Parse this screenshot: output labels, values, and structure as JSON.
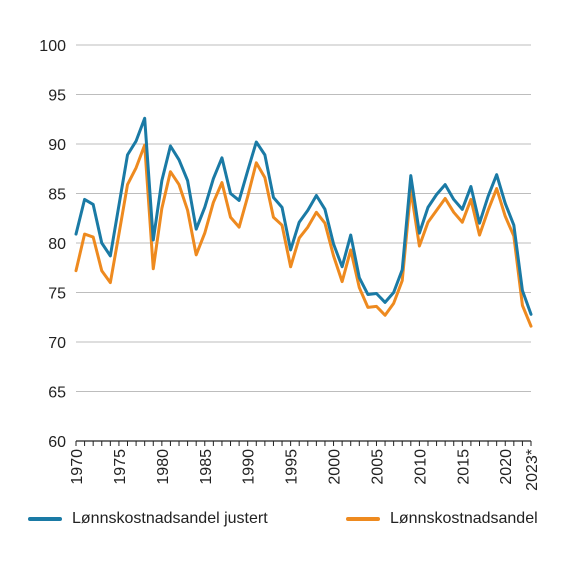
{
  "chart_data": {
    "type": "line",
    "x": [
      "1970",
      "1971",
      "1972",
      "1973",
      "1974",
      "1975",
      "1976",
      "1977",
      "1978",
      "1979",
      "1980",
      "1981",
      "1982",
      "1983",
      "1984",
      "1985",
      "1986",
      "1987",
      "1988",
      "1989",
      "1990",
      "1991",
      "1992",
      "1993",
      "1994",
      "1995",
      "1996",
      "1997",
      "1998",
      "1999",
      "2000",
      "2001",
      "2002",
      "2003",
      "2004",
      "2005",
      "2006",
      "2007",
      "2008",
      "2009",
      "2010",
      "2011",
      "2012",
      "2013",
      "2014",
      "2015",
      "2016",
      "2017",
      "2018",
      "2019",
      "2020",
      "2021",
      "2022",
      "2023*"
    ],
    "xticks": [
      "1970",
      "1975",
      "1980",
      "1985",
      "1990",
      "1995",
      "2000",
      "2005",
      "2010",
      "2015",
      "2020",
      "2023*"
    ],
    "yticks": [
      "60",
      "65",
      "70",
      "75",
      "80",
      "85",
      "90",
      "95",
      "100"
    ],
    "ylim": [
      60,
      100
    ],
    "grid": true,
    "legend_position": "bottom",
    "series": [
      {
        "name": "Lønnskostnadsandel justert",
        "color": "#1a7aa5",
        "values": [
          80.9,
          84.4,
          83.9,
          80.0,
          78.7,
          83.8,
          88.9,
          90.3,
          92.6,
          80.3,
          86.3,
          89.8,
          88.4,
          86.3,
          81.4,
          83.6,
          86.5,
          88.6,
          85.0,
          84.3,
          87.3,
          90.2,
          88.9,
          84.6,
          83.6,
          79.3,
          82.1,
          83.3,
          84.8,
          83.4,
          79.9,
          77.6,
          80.8,
          76.5,
          74.8,
          74.9,
          74.0,
          75.0,
          77.3,
          86.8,
          81.0,
          83.6,
          84.9,
          85.9,
          84.4,
          83.4,
          85.7,
          82.0,
          84.7,
          86.9,
          84.0,
          81.8,
          75.2,
          72.8
        ]
      },
      {
        "name": "Lønnskostnadsandel",
        "color": "#ee8a1f",
        "values": [
          77.2,
          80.9,
          80.6,
          77.2,
          76.0,
          80.9,
          85.9,
          87.6,
          89.9,
          77.4,
          83.5,
          87.2,
          85.9,
          83.3,
          78.8,
          81.0,
          84.1,
          86.1,
          82.6,
          81.6,
          84.7,
          88.1,
          86.6,
          82.6,
          81.8,
          77.6,
          80.5,
          81.6,
          83.1,
          82.0,
          78.7,
          76.1,
          79.3,
          75.5,
          73.5,
          73.6,
          72.7,
          73.9,
          76.2,
          85.4,
          79.7,
          82.1,
          83.3,
          84.5,
          83.1,
          82.1,
          84.4,
          80.8,
          83.3,
          85.5,
          82.7,
          80.7,
          73.7,
          71.6
        ]
      }
    ]
  }
}
